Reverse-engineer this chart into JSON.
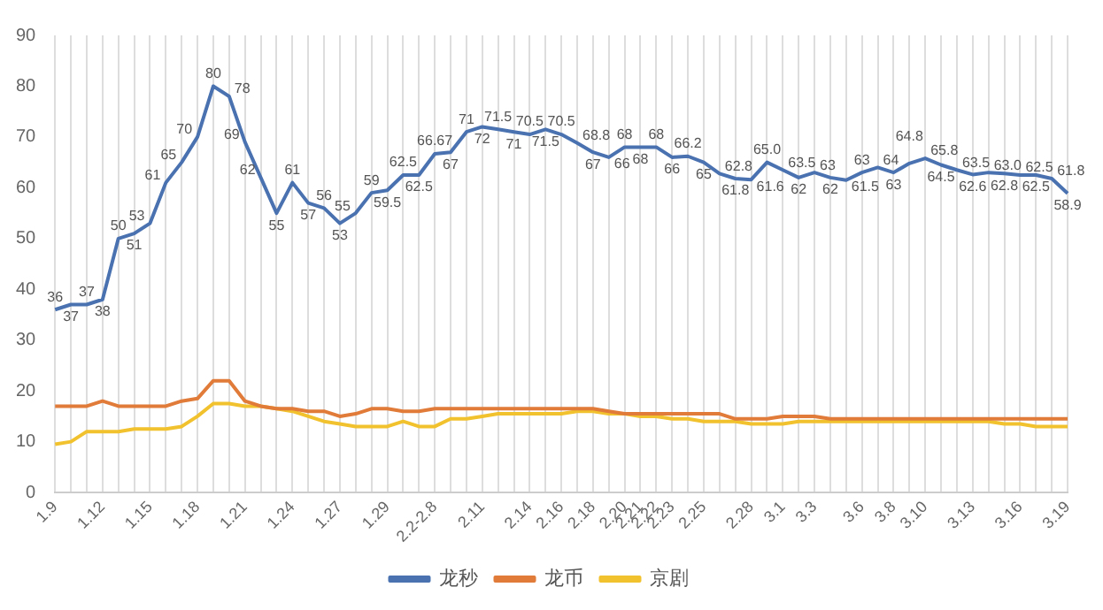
{
  "chart_data": {
    "type": "line",
    "categories": [
      "1.9",
      null,
      null,
      "1.12",
      null,
      null,
      "1.15",
      null,
      null,
      "1.18",
      null,
      null,
      "1.21",
      null,
      null,
      "1.24",
      null,
      null,
      "1.27",
      null,
      null,
      "1.29",
      null,
      null,
      "2.2-2.8",
      null,
      null,
      "2.11",
      null,
      null,
      "2.14",
      null,
      "2.16",
      null,
      "2.18",
      null,
      "2.20",
      "2.21",
      "2.22",
      "2.23",
      null,
      "2.25",
      null,
      null,
      "2.28",
      null,
      "3.1",
      null,
      "3.3",
      null,
      null,
      "3.6",
      null,
      "3.8",
      null,
      "3.10",
      null,
      null,
      "3.13",
      null,
      null,
      "3.16",
      null,
      null,
      "3.19"
    ],
    "series": [
      {
        "name": "龙秒",
        "color": "#4a72b0",
        "values": [
          36,
          37,
          37,
          38,
          50,
          51,
          53,
          61,
          65,
          70,
          80,
          78,
          69,
          62,
          55,
          61,
          57,
          56,
          53,
          55,
          59,
          59.5,
          62.5,
          62.5,
          66.67,
          67,
          71,
          72,
          71.5,
          71,
          70.5,
          71.5,
          70.5,
          68.8,
          67,
          66,
          68,
          68,
          68,
          66,
          66.2,
          65,
          62.8,
          61.8,
          61.6,
          65.0,
          63.5,
          62,
          63,
          62,
          61.5,
          63,
          64,
          63,
          64.8,
          65.8,
          64.5,
          63.5,
          62.6,
          63.0,
          62.8,
          62.5,
          62.5,
          61.8,
          58.9
        ],
        "value_labels": [
          "36",
          "37",
          "37",
          "38",
          "50",
          "51",
          "53",
          "61",
          "65",
          "70",
          "80",
          "78",
          "69",
          "62",
          "55",
          "61",
          "57",
          "56",
          "53",
          "55",
          "59",
          "59.5",
          "62.5",
          "62.5",
          "66.67",
          "67",
          "71",
          "72",
          "71.5",
          "71",
          "70.5",
          "71.5",
          "70.5",
          "68.8",
          "67",
          "66",
          "68",
          "68",
          "68",
          "66",
          "66.2",
          "65",
          "62.8",
          "61.8",
          "61.6",
          "65.0",
          "63.5",
          "62",
          "63",
          "62",
          "61.5",
          "63",
          "64",
          "63",
          "64.8",
          "65.8",
          "64.5",
          "63.5",
          "62.6",
          "63.0",
          "62.8",
          "62.5",
          "62.5",
          "61.8",
          "58.9"
        ]
      },
      {
        "name": "龙币",
        "color": "#e07b39",
        "values": [
          17,
          17,
          17,
          18,
          17,
          17,
          17,
          17,
          18,
          18.5,
          22,
          22,
          18,
          17,
          16.5,
          16.5,
          16,
          16,
          15,
          15.5,
          16.5,
          16.5,
          16,
          16,
          16.5,
          16.5,
          16.5,
          16.5,
          16.5,
          16.5,
          16.5,
          16.5,
          16.5,
          16.5,
          16.5,
          16,
          15.5,
          15.5,
          15.5,
          15.5,
          15.5,
          15.5,
          15.5,
          14.5,
          14.5,
          14.5,
          15,
          15,
          15,
          14.5,
          14.5,
          14.5,
          14.5,
          14.5,
          14.5,
          14.5,
          14.5,
          14.5,
          14.5,
          14.5,
          14.5,
          14.5,
          14.5,
          14.5,
          14.5
        ]
      },
      {
        "name": "京剧",
        "color": "#f2c12e",
        "values": [
          9.5,
          10,
          12,
          12,
          12,
          12.5,
          12.5,
          12.5,
          13,
          15,
          17.5,
          17.5,
          17,
          17,
          16.5,
          16,
          15,
          14,
          13.5,
          13,
          13,
          13,
          14,
          13,
          13,
          14.5,
          14.5,
          15,
          15.5,
          15.5,
          15.5,
          15.5,
          15.5,
          16,
          16,
          15.5,
          15.5,
          15,
          15,
          14.5,
          14.5,
          14,
          14,
          14,
          13.5,
          13.5,
          13.5,
          14,
          14,
          14,
          14,
          14,
          14,
          14,
          14,
          14,
          14,
          14,
          14,
          14,
          13.5,
          13.5,
          13,
          13,
          13
        ]
      }
    ],
    "ylim": [
      0,
      90
    ],
    "yticks": [
      0,
      10,
      20,
      30,
      40,
      50,
      60,
      70,
      80,
      90
    ],
    "grid": "x",
    "legend": "bottom"
  }
}
